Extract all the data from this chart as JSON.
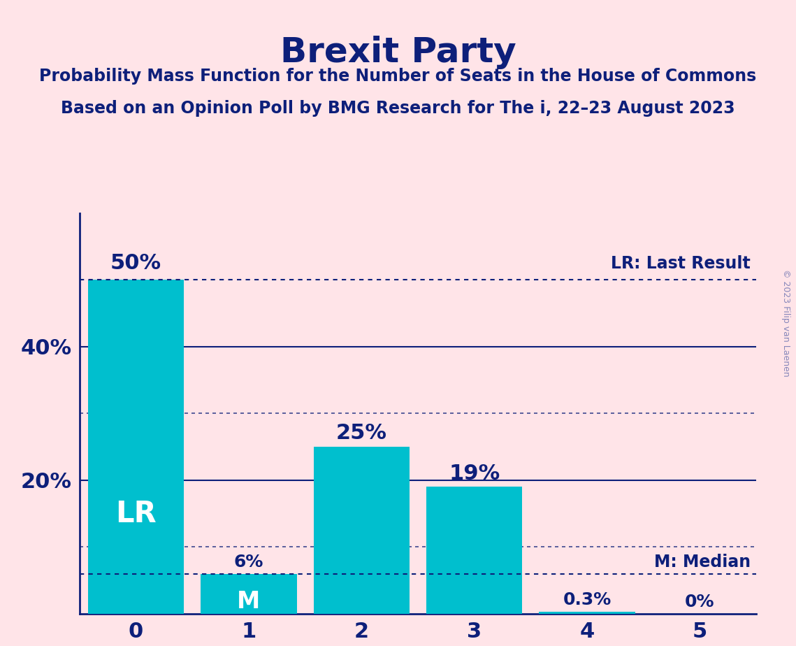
{
  "title": "Brexit Party",
  "subtitle1": "Probability Mass Function for the Number of Seats in the House of Commons",
  "subtitle2": "Based on an Opinion Poll by BMG Research for The i, 22–23 August 2023",
  "copyright": "© 2023 Filip van Laenen",
  "categories": [
    0,
    1,
    2,
    3,
    4,
    5
  ],
  "values": [
    0.5,
    0.06,
    0.25,
    0.19,
    0.003,
    0.0
  ],
  "bar_color": "#00BFCE",
  "bar_labels": [
    "50%",
    "6%",
    "25%",
    "19%",
    "0.3%",
    "0%"
  ],
  "lr_label": "LR",
  "m_label": "M",
  "lr_bar": 0,
  "m_bar": 1,
  "lr_line_y": 0.5,
  "m_line_y": 0.06,
  "bg_color": "#FFE4E8",
  "text_color": "#0D1F7A",
  "yticks": [
    0.2,
    0.4
  ],
  "ytick_labels": [
    "20%",
    "40%"
  ],
  "xlim": [
    -0.5,
    5.5
  ],
  "ylim": [
    0,
    0.6
  ],
  "hline_solid": [
    0.2,
    0.4
  ],
  "hline_dotted": [
    0.1,
    0.3
  ],
  "bar_width": 0.85,
  "title_fontsize": 36,
  "subtitle_fontsize": 17,
  "tick_fontsize": 22,
  "bar_label_fontsize_large": 22,
  "bar_label_fontsize_small": 18,
  "lr_fontsize": 30,
  "m_fontsize": 24,
  "legend_fontsize": 17,
  "copyright_color": "#8888BB",
  "copyright_fontsize": 9
}
